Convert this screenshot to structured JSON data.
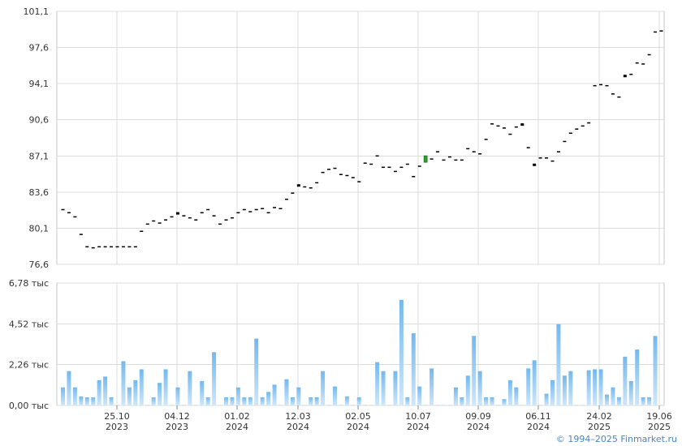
{
  "credit": "© 1994–2025 Finmarket.ru",
  "colors": {
    "grid": "#dcdcdc",
    "candle_up": "#2e9e2e",
    "candle_down": "#000000",
    "volume_top": "#73b8ee",
    "volume_bottom": "#cfe7fa"
  },
  "chart_data": [
    {
      "type": "candlestick",
      "title": "",
      "ylim": [
        76.6,
        101.1
      ],
      "y_ticks": [
        "76,6",
        "80,1",
        "83,6",
        "87,1",
        "90,6",
        "94,1",
        "97,6",
        "101,1"
      ],
      "x_ticks": [
        {
          "date": "25.10",
          "year": "2023"
        },
        {
          "date": "04.12",
          "year": "2023"
        },
        {
          "date": "01.02",
          "year": "2024"
        },
        {
          "date": "12.03",
          "year": "2024"
        },
        {
          "date": "02.05",
          "year": "2024"
        },
        {
          "date": "10.07",
          "year": "2024"
        },
        {
          "date": "09.09",
          "year": "2024"
        },
        {
          "date": "06.11",
          "year": "2024"
        },
        {
          "date": "24.02",
          "year": "2025"
        },
        {
          "date": "19.06",
          "year": "2025"
        }
      ],
      "close": [
        81.9,
        81.6,
        81.2,
        79.5,
        78.3,
        78.2,
        78.3,
        78.3,
        78.3,
        78.3,
        78.3,
        78.3,
        78.3,
        79.8,
        80.5,
        80.8,
        80.6,
        80.9,
        81.2,
        81.5,
        81.3,
        81.1,
        80.9,
        81.6,
        81.9,
        81.3,
        80.5,
        80.9,
        81.1,
        81.6,
        81.9,
        81.7,
        81.9,
        82.0,
        81.6,
        82.1,
        82.0,
        82.9,
        83.5,
        84.2,
        84.1,
        84.0,
        84.5,
        85.5,
        85.8,
        85.9,
        85.3,
        85.2,
        85.0,
        84.6,
        86.4,
        86.3,
        87.1,
        86.0,
        86.0,
        85.6,
        86.0,
        86.3,
        85.1,
        86.1,
        86.8,
        86.8,
        87.5,
        86.7,
        87.0,
        86.7,
        86.7,
        87.8,
        87.5,
        87.3,
        88.7,
        90.2,
        90.0,
        89.8,
        89.2,
        89.9,
        90.1,
        87.9,
        86.2,
        86.9,
        86.9,
        86.6,
        87.5,
        88.5,
        89.3,
        89.7,
        90.0,
        90.3,
        93.9,
        94.0,
        93.9,
        93.1,
        92.8,
        94.8,
        95.0,
        96.1,
        96.0,
        96.9,
        99.1,
        99.2
      ],
      "volume": {
        "ylim": [
          0,
          6780
        ],
        "y_ticks": [
          "0,00 тыс",
          "2,26 тыс",
          "4,52 тыс",
          "6,78 тыс"
        ],
        "values": [
          1000,
          1900,
          1000,
          500,
          450,
          450,
          1400,
          1600,
          450,
          0,
          2450,
          1000,
          1400,
          2000,
          0,
          450,
          1250,
          2000,
          0,
          1000,
          0,
          1900,
          0,
          1350,
          450,
          2950,
          0,
          450,
          450,
          1000,
          450,
          450,
          3700,
          450,
          750,
          1150,
          0,
          1450,
          450,
          1000,
          0,
          450,
          450,
          1900,
          0,
          1050,
          0,
          500,
          0,
          450,
          0,
          0,
          2400,
          1900,
          0,
          1900,
          5850,
          450,
          4000,
          1050,
          0,
          2050,
          0,
          0,
          0,
          1000,
          450,
          1650,
          3850,
          1900,
          450,
          450,
          0,
          350,
          1400,
          1000,
          0,
          2050,
          2500,
          0,
          650,
          1400,
          4500,
          1650,
          1900,
          0,
          0,
          1950,
          2000,
          2000,
          600,
          1000,
          450,
          2700,
          1350,
          3100,
          450,
          450,
          3850,
          0
        ]
      }
    }
  ]
}
